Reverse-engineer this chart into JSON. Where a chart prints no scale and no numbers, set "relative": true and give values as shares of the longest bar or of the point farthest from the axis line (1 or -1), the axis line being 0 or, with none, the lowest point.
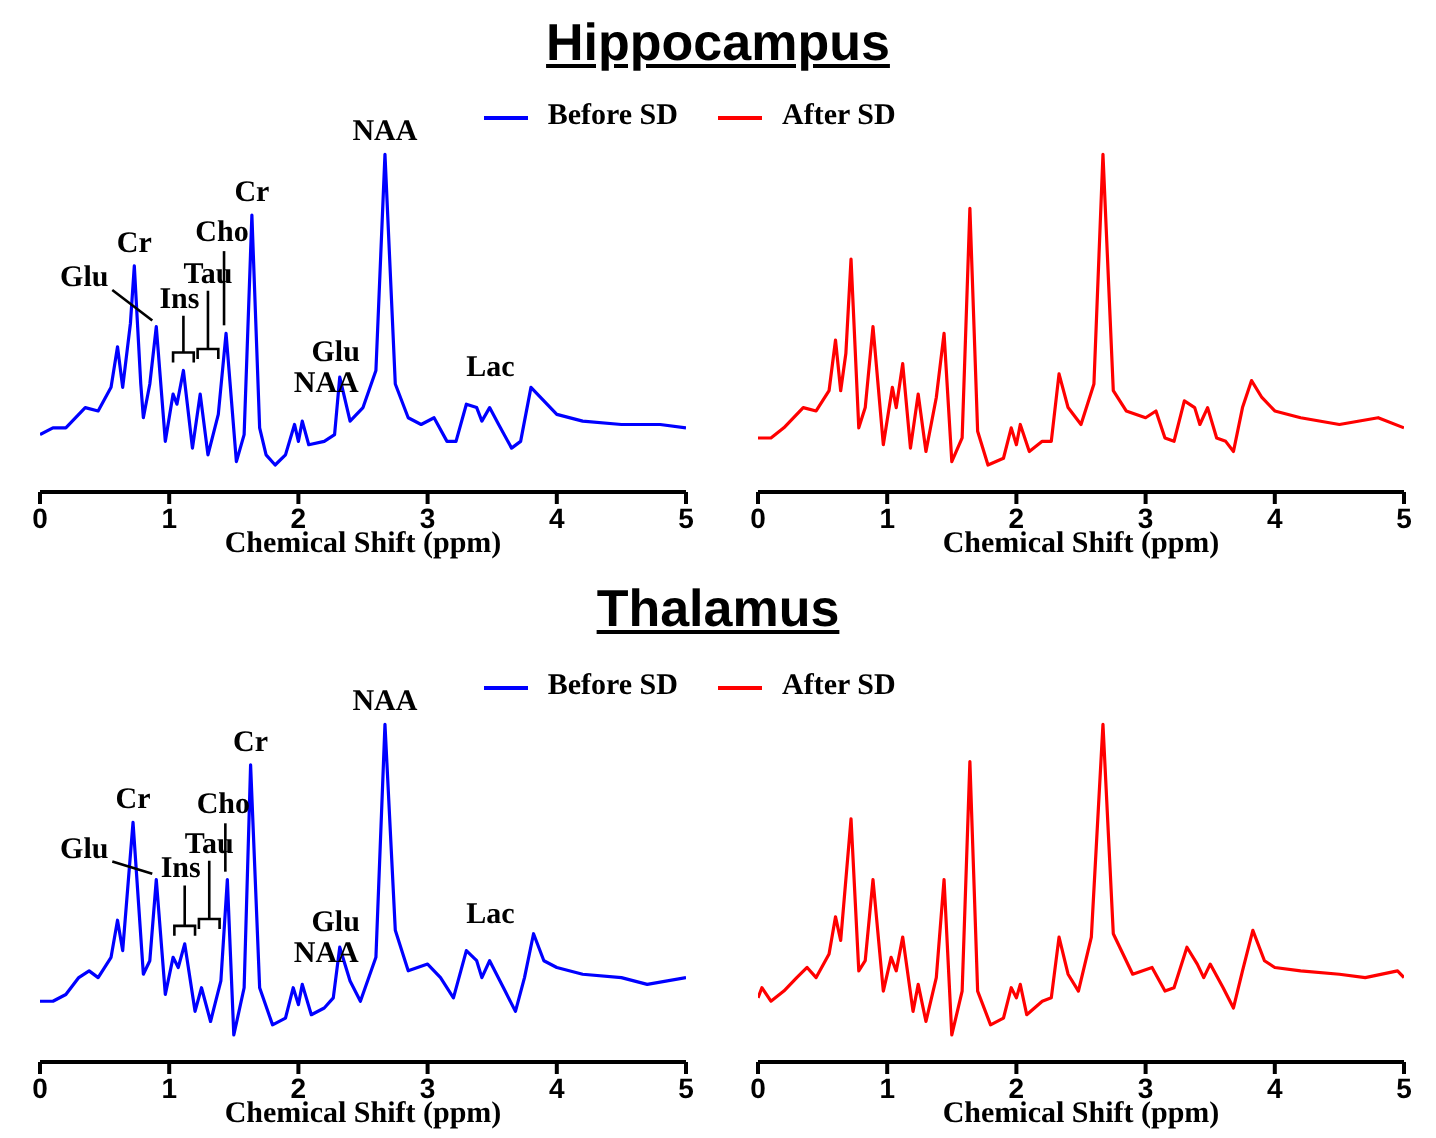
{
  "chart_data": [
    {
      "type": "line",
      "title": "Hippocampus",
      "xlabel": "Chemical Shift (ppm)",
      "relative": true,
      "xlim": [
        0,
        5
      ],
      "xticks": [
        0,
        1,
        2,
        3,
        4,
        5
      ],
      "legend": "top right",
      "tick_labels": "x",
      "series": [
        {
          "name": "Before SD",
          "color": "#0000ff",
          "x": [
            0,
            0.1,
            0.2,
            0.35,
            0.45,
            0.55,
            0.6,
            0.64,
            0.7,
            0.73,
            0.78,
            0.8,
            0.85,
            0.9,
            0.97,
            1.03,
            1.06,
            1.11,
            1.18,
            1.24,
            1.3,
            1.38,
            1.44,
            1.52,
            1.58,
            1.64,
            1.7,
            1.75,
            1.82,
            1.9,
            1.97,
            2.0,
            2.03,
            2.08,
            2.2,
            2.28,
            2.32,
            2.4,
            2.5,
            2.6,
            2.67,
            2.75,
            2.85,
            2.95,
            3.05,
            3.15,
            3.22,
            3.3,
            3.38,
            3.42,
            3.48,
            3.55,
            3.65,
            3.72,
            3.8,
            3.85,
            4.0,
            4.2,
            4.5,
            4.8,
            5.0
          ],
          "values": [
            0.17,
            0.19,
            0.19,
            0.25,
            0.24,
            0.31,
            0.43,
            0.31,
            0.5,
            0.67,
            0.32,
            0.22,
            0.32,
            0.49,
            0.15,
            0.29,
            0.26,
            0.36,
            0.13,
            0.29,
            0.11,
            0.23,
            0.47,
            0.09,
            0.17,
            0.82,
            0.19,
            0.11,
            0.08,
            0.11,
            0.2,
            0.15,
            0.21,
            0.14,
            0.15,
            0.17,
            0.34,
            0.21,
            0.25,
            0.36,
            1,
            0.32,
            0.22,
            0.2,
            0.22,
            0.15,
            0.15,
            0.26,
            0.25,
            0.21,
            0.25,
            0.2,
            0.13,
            0.15,
            0.31,
            0.29,
            0.23,
            0.21,
            0.2,
            0.2,
            0.19
          ]
        }
      ],
      "annotations": [
        {
          "text": "NAA",
          "x": 2.67,
          "y": 1
        },
        {
          "text": "Cr",
          "x": 1.64,
          "y": 0.82
        },
        {
          "text": "Cr",
          "x": 0.73,
          "y": 0.67
        },
        {
          "text": "Glu",
          "x": 0.9,
          "y": 0.49
        },
        {
          "text": "Ins",
          "x": 1.11,
          "y": 0.36
        },
        "Tau",
        {
          "text": "Cho",
          "x": 1.44,
          "y": 0.47
        },
        {
          "text": "NAA",
          "x": 2.03,
          "y": 0.21
        },
        {
          "text": "Glu",
          "x": 2.32,
          "y": 0.34
        },
        {
          "text": "Lac",
          "x": 3.3,
          "y": 0.26
        }
      ]
    },
    {
      "type": "line",
      "xlabel": "Chemical Shift (ppm)",
      "relative": true,
      "xlim": [
        0,
        5
      ],
      "xticks": [
        0,
        1,
        2,
        3,
        4,
        5
      ],
      "legend": "top left",
      "tick_labels": "x",
      "series": [
        {
          "name": "After SD",
          "color": "#ff0000",
          "x": [
            0,
            0.1,
            0.2,
            0.35,
            0.45,
            0.55,
            0.6,
            0.64,
            0.68,
            0.72,
            0.78,
            0.83,
            0.89,
            0.97,
            1.04,
            1.07,
            1.12,
            1.18,
            1.24,
            1.3,
            1.38,
            1.44,
            1.5,
            1.58,
            1.64,
            1.7,
            1.78,
            1.9,
            1.96,
            2.0,
            2.03,
            2.1,
            2.2,
            2.27,
            2.33,
            2.4,
            2.5,
            2.6,
            2.67,
            2.75,
            2.85,
            3.0,
            3.08,
            3.15,
            3.22,
            3.3,
            3.38,
            3.42,
            3.48,
            3.55,
            3.62,
            3.68,
            3.75,
            3.82,
            3.9,
            4.0,
            4.2,
            4.5,
            4.8,
            5.0
          ],
          "values": [
            0.16,
            0.16,
            0.19,
            0.25,
            0.24,
            0.3,
            0.45,
            0.3,
            0.41,
            0.69,
            0.19,
            0.25,
            0.49,
            0.14,
            0.31,
            0.25,
            0.38,
            0.13,
            0.29,
            0.12,
            0.28,
            0.47,
            0.09,
            0.16,
            0.84,
            0.18,
            0.08,
            0.1,
            0.19,
            0.14,
            0.2,
            0.12,
            0.15,
            0.15,
            0.35,
            0.25,
            0.2,
            0.32,
            1,
            0.3,
            0.24,
            0.22,
            0.24,
            0.16,
            0.15,
            0.27,
            0.25,
            0.2,
            0.25,
            0.16,
            0.15,
            0.12,
            0.25,
            0.33,
            0.28,
            0.24,
            0.22,
            0.2,
            0.22,
            0.19
          ]
        }
      ]
    },
    {
      "type": "line",
      "title": "Thalamus",
      "xlabel": "Chemical Shift (ppm)",
      "relative": true,
      "xlim": [
        0,
        5
      ],
      "xticks": [
        0,
        1,
        2,
        3,
        4,
        5
      ],
      "legend": "top right",
      "tick_labels": "x",
      "series": [
        {
          "name": "Before SD",
          "color": "#0000ff",
          "x": [
            0,
            0.1,
            0.2,
            0.3,
            0.38,
            0.45,
            0.55,
            0.6,
            0.64,
            0.72,
            0.8,
            0.85,
            0.9,
            0.97,
            1.03,
            1.07,
            1.12,
            1.2,
            1.25,
            1.32,
            1.4,
            1.45,
            1.5,
            1.58,
            1.63,
            1.7,
            1.8,
            1.9,
            1.96,
            2.0,
            2.03,
            2.1,
            2.2,
            2.27,
            2.32,
            2.4,
            2.48,
            2.6,
            2.67,
            2.75,
            2.85,
            3.0,
            3.1,
            3.2,
            3.3,
            3.38,
            3.42,
            3.48,
            3.6,
            3.68,
            3.75,
            3.82,
            3.9,
            4.0,
            4.2,
            4.5,
            4.7,
            5.0
          ],
          "values": [
            0.18,
            0.18,
            0.2,
            0.25,
            0.27,
            0.25,
            0.31,
            0.42,
            0.33,
            0.71,
            0.26,
            0.3,
            0.54,
            0.2,
            0.31,
            0.28,
            0.35,
            0.15,
            0.22,
            0.12,
            0.24,
            0.54,
            0.08,
            0.22,
            0.88,
            0.22,
            0.11,
            0.13,
            0.22,
            0.17,
            0.23,
            0.14,
            0.16,
            0.19,
            0.34,
            0.24,
            0.18,
            0.31,
            1,
            0.39,
            0.27,
            0.29,
            0.25,
            0.19,
            0.33,
            0.3,
            0.25,
            0.3,
            0.21,
            0.15,
            0.25,
            0.38,
            0.3,
            0.28,
            0.26,
            0.25,
            0.23,
            0.25
          ]
        }
      ],
      "annotations": [
        {
          "text": "NAA",
          "x": 2.67,
          "y": 1
        },
        {
          "text": "Cr",
          "x": 1.63,
          "y": 0.88
        },
        {
          "text": "Cr",
          "x": 0.72,
          "y": 0.71
        },
        {
          "text": "Glu",
          "x": 0.9,
          "y": 0.54
        },
        {
          "text": "Ins",
          "x": 1.12,
          "y": 0.35
        },
        "Tau",
        {
          "text": "Cho",
          "x": 1.45,
          "y": 0.54
        },
        {
          "text": "NAA",
          "x": 2.03,
          "y": 0.23
        },
        {
          "text": "Glu",
          "x": 2.32,
          "y": 0.34
        },
        {
          "text": "Lac",
          "x": 3.3,
          "y": 0.33
        }
      ]
    },
    {
      "type": "line",
      "xlabel": "Chemical Shift (ppm)",
      "relative": true,
      "xlim": [
        0,
        5
      ],
      "xticks": [
        0,
        1,
        2,
        3,
        4,
        5
      ],
      "legend": "top left",
      "tick_labels": "x",
      "series": [
        {
          "name": "After SD",
          "color": "#ff0000",
          "x": [
            0,
            0.03,
            0.1,
            0.2,
            0.3,
            0.38,
            0.45,
            0.55,
            0.6,
            0.64,
            0.72,
            0.78,
            0.83,
            0.89,
            0.97,
            1.03,
            1.07,
            1.12,
            1.2,
            1.24,
            1.3,
            1.38,
            1.44,
            1.5,
            1.58,
            1.64,
            1.7,
            1.8,
            1.9,
            1.96,
            2.0,
            2.03,
            2.08,
            2.2,
            2.27,
            2.33,
            2.4,
            2.48,
            2.58,
            2.67,
            2.75,
            2.9,
            3.05,
            3.15,
            3.22,
            3.32,
            3.4,
            3.45,
            3.5,
            3.6,
            3.68,
            3.75,
            3.83,
            3.92,
            4.0,
            4.2,
            4.5,
            4.7,
            4.95,
            5.0
          ],
          "values": [
            0.19,
            0.22,
            0.18,
            0.21,
            0.25,
            0.28,
            0.25,
            0.32,
            0.43,
            0.36,
            0.72,
            0.27,
            0.3,
            0.54,
            0.21,
            0.31,
            0.27,
            0.37,
            0.15,
            0.23,
            0.12,
            0.25,
            0.54,
            0.08,
            0.21,
            0.89,
            0.21,
            0.11,
            0.13,
            0.22,
            0.19,
            0.23,
            0.14,
            0.18,
            0.19,
            0.37,
            0.26,
            0.21,
            0.37,
            1,
            0.38,
            0.26,
            0.28,
            0.21,
            0.22,
            0.34,
            0.29,
            0.25,
            0.29,
            0.22,
            0.16,
            0.27,
            0.39,
            0.3,
            0.28,
            0.27,
            0.26,
            0.25,
            0.27,
            0.25
          ]
        }
      ]
    }
  ]
}
